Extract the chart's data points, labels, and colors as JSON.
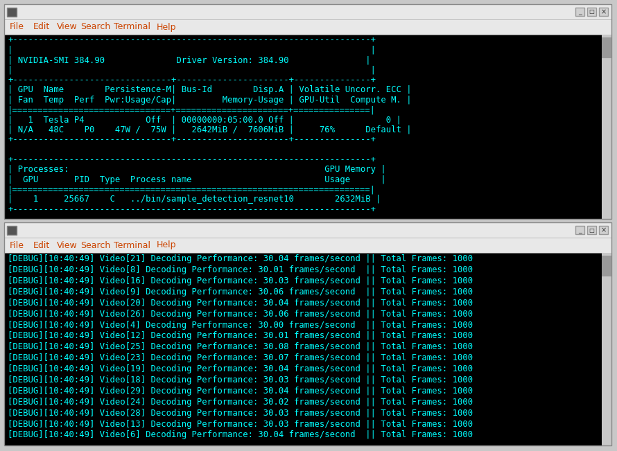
{
  "fig_width": 8.9,
  "fig_height": 6.51,
  "bg_color": "#c8c8c8",
  "terminal_bg": "#000000",
  "title_bar_bg": "#e8e8e8",
  "title_bar_border": "#999999",
  "menu_bar_bg": "#e8e8e8",
  "menu_color": "#cc4400",
  "text_color_cyan": "#00ffff",
  "scrollbar_color": "#c0c0c0",
  "top_terminal": {
    "menu_items": [
      "File",
      "Edit",
      "View",
      "Search",
      "Terminal",
      "Help"
    ],
    "content_lines": [
      "+----------------------------------------------------------------------+",
      "|                                                                      |",
      "| NVIDIA-SMI 384.90              Driver Version: 384.90               |",
      "|                                                                      |",
      "+-------------------------------+----------------------+---------------+",
      "| GPU  Name        Persistence-M| Bus-Id        Disp.A | Volatile Uncorr. ECC |",
      "| Fan  Temp  Perf  Pwr:Usage/Cap|         Memory-Usage | GPU-Util  Compute M. |",
      "|===============================+======================+===============|",
      "|   1  Tesla P4            Off  | 00000000:05:00.0 Off |                  0 |",
      "| N/A   48C    P0    47W /  75W |   2642MiB /  7606MiB |     76%      Default |",
      "+-------------------------------+----------------------+---------------+",
      "                                                                        ",
      "+----------------------------------------------------------------------+",
      "| Processes:                                                  GPU Memory |",
      "|  GPU       PID  Type  Process name                          Usage      |",
      "|======================================================================|",
      "|    1     25667    C   ../bin/sample_detection_resnet10        2632MiB |",
      "+----------------------------------------------------------------------+"
    ]
  },
  "bottom_terminal": {
    "menu_items": [
      "File",
      "Edit",
      "View",
      "Search",
      "Terminal",
      "Help"
    ],
    "content_lines": [
      "[DEBUG][10:40:49] Video[21] Decoding Performance: 30.04 frames/second || Total Frames: 1000",
      "[DEBUG][10:40:49] Video[8] Decoding Performance: 30.01 frames/second  || Total Frames: 1000",
      "[DEBUG][10:40:49] Video[16] Decoding Performance: 30.03 frames/second || Total Frames: 1000",
      "[DEBUG][10:40:49] Video[9] Decoding Performance: 30.06 frames/second  || Total Frames: 1000",
      "[DEBUG][10:40:49] Video[20] Decoding Performance: 30.04 frames/second || Total Frames: 1000",
      "[DEBUG][10:40:49] Video[26] Decoding Performance: 30.06 frames/second || Total Frames: 1000",
      "[DEBUG][10:40:49] Video[4] Decoding Performance: 30.00 frames/second  || Total Frames: 1000",
      "[DEBUG][10:40:49] Video[12] Decoding Performance: 30.01 frames/second || Total Frames: 1000",
      "[DEBUG][10:40:49] Video[25] Decoding Performance: 30.08 frames/second || Total Frames: 1000",
      "[DEBUG][10:40:49] Video[23] Decoding Performance: 30.07 frames/second || Total Frames: 1000",
      "[DEBUG][10:40:49] Video[19] Decoding Performance: 30.04 frames/second || Total Frames: 1000",
      "[DEBUG][10:40:49] Video[18] Decoding Performance: 30.03 frames/second || Total Frames: 1000",
      "[DEBUG][10:40:49] Video[29] Decoding Performance: 30.04 frames/second || Total Frames: 1000",
      "[DEBUG][10:40:49] Video[24] Decoding Performance: 30.02 frames/second || Total Frames: 1000",
      "[DEBUG][10:40:49] Video[28] Decoding Performance: 30.03 frames/second || Total Frames: 1000",
      "[DEBUG][10:40:49] Video[13] Decoding Performance: 30.03 frames/second || Total Frames: 1000",
      "[DEBUG][10:40:49] Video[6] Decoding Performance: 30.04 frames/second  || Total Frames: 1000"
    ]
  }
}
